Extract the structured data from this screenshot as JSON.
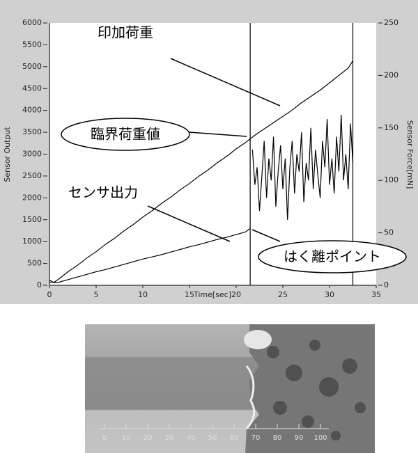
{
  "chart_data": {
    "type": "line",
    "xlabel": "Time[sec]",
    "ylabel": "Sensor Output",
    "y2label": "Sensor Force[mN]",
    "xlim": [
      0,
      35
    ],
    "xticks": [
      0,
      5,
      10,
      15,
      20,
      25,
      30,
      35
    ],
    "ylim": [
      0,
      6000
    ],
    "yticks": [
      0,
      500,
      1000,
      1500,
      2000,
      2500,
      3000,
      3500,
      4000,
      4500,
      5000,
      5500,
      6000
    ],
    "y2lim": [
      0,
      250
    ],
    "y2ticks": [
      0,
      50,
      100,
      150,
      200,
      250
    ],
    "vlines": [
      21.5,
      32.5
    ],
    "series": [
      {
        "name": "印加荷重",
        "color": "#000000",
        "axis": "y2",
        "x": [
          0,
          0.5,
          1,
          2,
          3,
          4,
          5,
          6,
          7,
          8,
          9,
          10,
          11,
          12,
          13,
          14,
          15,
          16,
          17,
          18,
          19,
          20,
          21,
          22,
          23,
          24,
          25,
          26,
          27,
          28,
          29,
          30,
          31,
          32,
          32.5
        ],
        "values": [
          3,
          3,
          6,
          13,
          19,
          26,
          32,
          39,
          45,
          52,
          58,
          65,
          71,
          78,
          84,
          91,
          97,
          104,
          110,
          117,
          123,
          130,
          136,
          143,
          149,
          155,
          161,
          167,
          174,
          180,
          186,
          193,
          200,
          207,
          214
        ]
      },
      {
        "name": "センサ出力",
        "color": "#000000",
        "x": [
          0,
          0.5,
          1,
          2,
          3,
          4,
          5,
          6,
          7,
          8,
          9,
          10,
          11,
          12,
          13,
          14,
          15,
          16,
          17,
          18,
          19,
          20,
          21,
          21.5,
          21.6,
          21.75,
          22,
          22.25,
          22.5,
          22.75,
          23,
          23.25,
          23.5,
          23.75,
          24,
          24.25,
          24.5,
          24.75,
          25,
          25.25,
          25.5,
          25.75,
          26,
          26.25,
          26.5,
          26.75,
          27,
          27.25,
          27.5,
          27.75,
          28,
          28.25,
          28.5,
          28.75,
          29,
          29.25,
          29.5,
          29.75,
          30,
          30.25,
          30.5,
          30.75,
          31,
          31.25,
          31.5,
          31.75,
          32,
          32.25,
          32.5
        ],
        "values": [
          120,
          60,
          70,
          130,
          190,
          250,
          310,
          360,
          420,
          480,
          540,
          600,
          650,
          700,
          760,
          820,
          880,
          930,
          990,
          1050,
          1100,
          1160,
          1220,
          1300,
          null,
          3100,
          2300,
          2700,
          1700,
          2500,
          3300,
          2000,
          2900,
          2400,
          3400,
          1800,
          2600,
          3200,
          2200,
          2900,
          1500,
          2700,
          3300,
          2100,
          3000,
          2600,
          3500,
          1900,
          2800,
          2400,
          3600,
          2200,
          3100,
          2500,
          2000,
          3300,
          2700,
          3800,
          2300,
          2900,
          2100,
          3400,
          2600,
          3900,
          2400,
          3000,
          2200,
          3700,
          2800
        ]
      }
    ],
    "annotations": [
      "臨界荷重値",
      "はく離ポイント"
    ]
  },
  "photo": {
    "scale_labels": [
      "0",
      "10",
      "20",
      "30",
      "40",
      "50",
      "60",
      "70",
      "80",
      "90",
      "100"
    ]
  }
}
